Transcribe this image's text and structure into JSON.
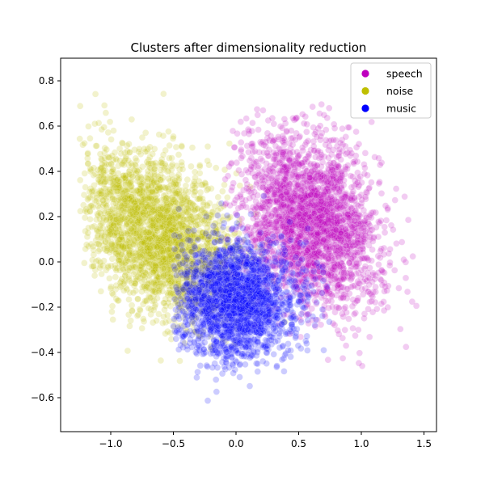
{
  "chart_data": {
    "type": "scatter",
    "title": "Clusters after dimensionality reduction",
    "xlabel": "",
    "ylabel": "",
    "xlim": [
      -1.4,
      1.6
    ],
    "ylim": [
      -0.75,
      0.9
    ],
    "x_ticks": [
      -1.0,
      -0.5,
      0.0,
      0.5,
      1.0,
      1.5
    ],
    "x_tick_labels": [
      "−1.0",
      "−0.5",
      "0.0",
      "0.5",
      "1.0",
      "1.5"
    ],
    "y_ticks": [
      -0.6,
      -0.4,
      -0.2,
      0.0,
      0.2,
      0.4,
      0.6,
      0.8
    ],
    "y_tick_labels": [
      "−0.6",
      "−0.4",
      "−0.2",
      "0.0",
      "0.2",
      "0.4",
      "0.6",
      "0.8"
    ],
    "grid": false,
    "legend_position": "top-right",
    "point_alpha": 0.2,
    "series": [
      {
        "name": "speech",
        "color": "#bf00bf",
        "count": 2600,
        "center": [
          0.6,
          0.17
        ],
        "spread": [
          0.27,
          0.19
        ],
        "correlation": -0.25,
        "x_range": [
          -0.1,
          1.45
        ],
        "y_range": [
          -0.5,
          0.7
        ]
      },
      {
        "name": "noise",
        "color": "#bfbf00",
        "count": 2600,
        "center": [
          -0.62,
          0.12
        ],
        "spread": [
          0.3,
          0.18
        ],
        "correlation": -0.35,
        "x_range": [
          -1.25,
          0.4
        ],
        "y_range": [
          -0.62,
          0.82
        ]
      },
      {
        "name": "music",
        "color": "#0000ff",
        "count": 2200,
        "center": [
          0.0,
          -0.17
        ],
        "spread": [
          0.24,
          0.13
        ],
        "correlation": 0.0,
        "x_range": [
          -0.5,
          0.75
        ],
        "y_range": [
          -0.68,
          0.3
        ]
      }
    ]
  }
}
